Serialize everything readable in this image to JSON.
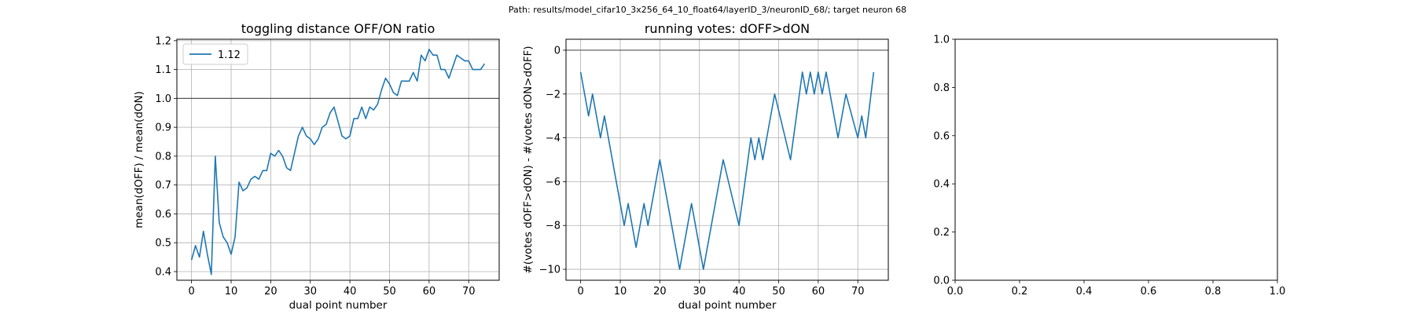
{
  "figure": {
    "path_text": "Path: results/model_cifar10_3x256_64_10_float64/layerID_3/neuronID_68/; target neuron 68"
  },
  "colors": {
    "line": "#1f77b4",
    "grid": "#b0b0b0",
    "hline": "#555555"
  },
  "chart_data": [
    {
      "type": "line",
      "title": "toggling distance OFF/ON ratio",
      "xlabel": "dual point number",
      "ylabel": "mean(dOFF) / mean(dON)",
      "xlim": [
        -3.7,
        77.7
      ],
      "ylim": [
        0.37,
        1.205
      ],
      "xticks": [
        0,
        10,
        20,
        30,
        40,
        50,
        60,
        70
      ],
      "yticks": [
        0.4,
        0.5,
        0.6,
        0.7,
        0.8,
        0.9,
        1.0,
        1.1,
        1.2
      ],
      "ytick_labels": [
        "0.4",
        "0.5",
        "0.6",
        "0.7",
        "0.8",
        "0.9",
        "1.0",
        "1.1",
        "1.2"
      ],
      "hline": 1.0,
      "grid": true,
      "legend": {
        "position": "upper-left",
        "entries": [
          "1.12"
        ]
      },
      "series": [
        {
          "name": "1.12",
          "x": [
            0,
            1,
            2,
            3,
            4,
            5,
            6,
            7,
            8,
            9,
            10,
            11,
            12,
            13,
            14,
            15,
            16,
            17,
            18,
            19,
            20,
            21,
            22,
            23,
            24,
            25,
            26,
            27,
            28,
            29,
            30,
            31,
            32,
            33,
            34,
            35,
            36,
            37,
            38,
            39,
            40,
            41,
            42,
            43,
            44,
            45,
            46,
            47,
            48,
            49,
            50,
            51,
            52,
            53,
            54,
            55,
            56,
            57,
            58,
            59,
            60,
            61,
            62,
            63,
            64,
            65,
            66,
            67,
            68,
            69,
            70,
            71,
            72,
            73,
            74
          ],
          "y": [
            0.44,
            0.49,
            0.45,
            0.54,
            0.46,
            0.39,
            0.8,
            0.57,
            0.52,
            0.5,
            0.46,
            0.52,
            0.71,
            0.68,
            0.69,
            0.72,
            0.73,
            0.72,
            0.75,
            0.75,
            0.81,
            0.8,
            0.82,
            0.8,
            0.76,
            0.75,
            0.81,
            0.87,
            0.9,
            0.87,
            0.86,
            0.84,
            0.86,
            0.9,
            0.91,
            0.95,
            0.97,
            0.92,
            0.87,
            0.86,
            0.87,
            0.93,
            0.93,
            0.97,
            0.93,
            0.97,
            0.96,
            0.98,
            1.03,
            1.07,
            1.05,
            1.02,
            1.01,
            1.06,
            1.06,
            1.06,
            1.09,
            1.06,
            1.15,
            1.13,
            1.17,
            1.15,
            1.15,
            1.1,
            1.1,
            1.07,
            1.11,
            1.15,
            1.14,
            1.13,
            1.13,
            1.1,
            1.1,
            1.1,
            1.12
          ]
        }
      ]
    },
    {
      "type": "line",
      "title": "running votes: dOFF>dON",
      "xlabel": "dual point number",
      "ylabel": "#(votes dOFF>dON) - #(votes dON>dOFF)",
      "xlim": [
        -3.7,
        77.7
      ],
      "ylim": [
        -10.5,
        0.5
      ],
      "xticks": [
        0,
        10,
        20,
        30,
        40,
        50,
        60,
        70
      ],
      "yticks": [
        0,
        -2,
        -4,
        -6,
        -8,
        -10
      ],
      "ytick_labels": [
        "0",
        "−2",
        "−4",
        "−6",
        "−8",
        "−10"
      ],
      "hline": 0,
      "grid": true,
      "series": [
        {
          "x": [
            0,
            2,
            3,
            5,
            6,
            11,
            12,
            14,
            16,
            17,
            20,
            25,
            28,
            31,
            36,
            40,
            43,
            44,
            45,
            46,
            49,
            53,
            56,
            57,
            58,
            59,
            60,
            61,
            62,
            65,
            67,
            70,
            71,
            72,
            74
          ],
          "y": [
            -1,
            -3,
            -2,
            -4,
            -3,
            -8,
            -7,
            -9,
            -7,
            -8,
            -5,
            -10,
            -7,
            -10,
            -5,
            -8,
            -4,
            -5,
            -4,
            -5,
            -2,
            -5,
            -1,
            -2,
            -1,
            -2,
            -1,
            -2,
            -1,
            -4,
            -2,
            -4,
            -3,
            -4,
            -1
          ]
        }
      ]
    },
    {
      "type": "line",
      "title": "",
      "xlim": [
        0,
        1
      ],
      "ylim": [
        0,
        1
      ],
      "xticks": [
        0.0,
        0.2,
        0.4,
        0.6,
        0.8,
        1.0
      ],
      "xtick_labels": [
        "0.0",
        "0.2",
        "0.4",
        "0.6",
        "0.8",
        "1.0"
      ],
      "yticks": [
        0.0,
        0.2,
        0.4,
        0.6,
        0.8,
        1.0
      ],
      "ytick_labels": [
        "0.0",
        "0.2",
        "0.4",
        "0.6",
        "0.8",
        "1.0"
      ],
      "grid": false,
      "series": []
    }
  ]
}
